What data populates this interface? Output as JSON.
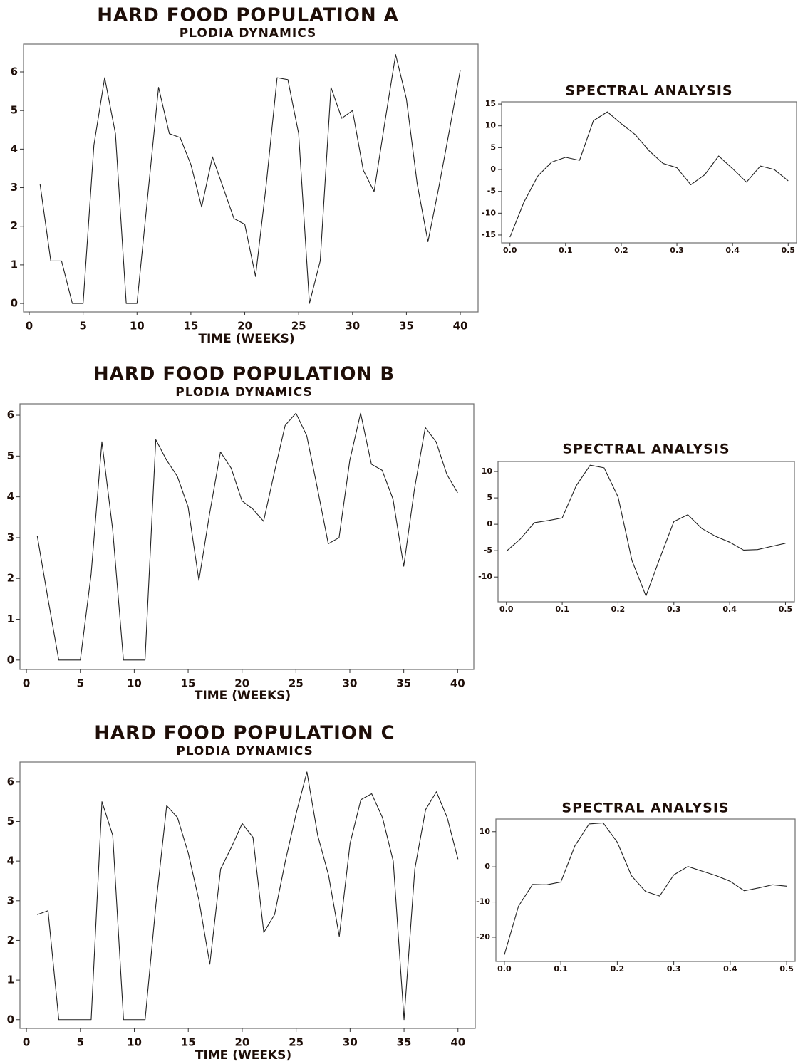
{
  "chart_data": [
    {
      "type": "line",
      "title": "HARD FOOD POPULATION A",
      "subtitle": "PLODIA DYNAMICS",
      "xlabel": "TIME (WEEKS)",
      "color": "#222222",
      "x": [
        1,
        2,
        3,
        4,
        5,
        6,
        7,
        8,
        9,
        10,
        11,
        12,
        13,
        14,
        15,
        16,
        17,
        18,
        19,
        20,
        21,
        22,
        23,
        24,
        25,
        26,
        27,
        28,
        29,
        30,
        31,
        32,
        33,
        34,
        35,
        36,
        37,
        38,
        39,
        40
      ],
      "values": [
        3.1,
        1.1,
        1.1,
        0,
        0,
        4.1,
        5.85,
        4.4,
        0,
        0,
        2.8,
        5.6,
        4.4,
        4.3,
        3.6,
        2.5,
        3.8,
        3.0,
        2.2,
        2.05,
        0.7,
        3.1,
        5.85,
        5.8,
        4.4,
        0,
        1.1,
        5.6,
        4.8,
        5.0,
        3.45,
        2.9,
        4.7,
        6.45,
        5.3,
        3.1,
        1.6,
        3.0,
        4.5,
        6.05
      ],
      "xlim": [
        -0.53,
        41.65
      ],
      "ylim": [
        -0.22,
        6.72
      ],
      "xticks": [
        0,
        5,
        10,
        15,
        20,
        25,
        30,
        35,
        40
      ],
      "yticks": [
        0,
        1,
        2,
        3,
        4,
        5,
        6
      ]
    },
    {
      "type": "line",
      "title": "SPECTRAL ANALYSIS",
      "color": "#222222",
      "x": [
        0,
        0.025,
        0.05,
        0.075,
        0.1,
        0.125,
        0.15,
        0.175,
        0.2,
        0.225,
        0.25,
        0.275,
        0.3,
        0.325,
        0.35,
        0.375,
        0.4,
        0.425,
        0.45,
        0.475,
        0.5
      ],
      "values": [
        -15.5,
        -7.5,
        -1.5,
        1.7,
        2.8,
        2.1,
        11.2,
        13.2,
        10.5,
        8,
        4.3,
        1.4,
        0.4,
        -3.5,
        -1.2,
        3.1,
        0.2,
        -2.9,
        0.8,
        0.0,
        -2.6
      ],
      "xlim": [
        -0.015,
        0.515
      ],
      "ylim": [
        -16.8,
        15.5
      ],
      "xticks": [
        {
          "value": 0,
          "label": "0.0"
        },
        0.1,
        0.2,
        0.3,
        0.4,
        0.5
      ],
      "yticks": [
        -15,
        -10,
        -5,
        0,
        5,
        10,
        15
      ]
    },
    {
      "type": "line",
      "title": "HARD FOOD POPULATION B",
      "subtitle": "PLODIA DYNAMICS",
      "xlabel": "TIME (WEEKS)",
      "color": "#222222",
      "x": [
        1,
        2,
        3,
        4,
        5,
        6,
        7,
        8,
        9,
        10,
        11,
        12,
        13,
        14,
        15,
        16,
        17,
        18,
        19,
        20,
        21,
        22,
        23,
        24,
        25,
        26,
        27,
        28,
        29,
        30,
        31,
        32,
        33,
        34,
        35,
        36,
        37,
        38,
        39,
        40
      ],
      "values": [
        3.05,
        1.5,
        0,
        0,
        0,
        2.1,
        5.35,
        3.2,
        0,
        0,
        0,
        5.4,
        4.9,
        4.5,
        3.75,
        1.95,
        3.6,
        5.1,
        4.7,
        3.9,
        3.7,
        3.4,
        4.6,
        5.75,
        6.05,
        5.5,
        4.2,
        2.85,
        3.0,
        4.9,
        6.05,
        4.8,
        4.65,
        3.95,
        2.3,
        4.2,
        5.7,
        5.35,
        4.55,
        4.1
      ],
      "xlim": [
        -0.6,
        41.5
      ],
      "ylim": [
        -0.23,
        6.28
      ],
      "xticks": [
        0,
        5,
        10,
        15,
        20,
        25,
        30,
        35,
        40
      ],
      "yticks": [
        0,
        1,
        2,
        3,
        4,
        5,
        6
      ]
    },
    {
      "type": "line",
      "title": "SPECTRAL ANALYSIS",
      "color": "#222222",
      "x": [
        0,
        0.025,
        0.05,
        0.075,
        0.1,
        0.125,
        0.15,
        0.175,
        0.2,
        0.225,
        0.25,
        0.275,
        0.3,
        0.325,
        0.35,
        0.375,
        0.4,
        0.425,
        0.45,
        0.475,
        0.5
      ],
      "values": [
        -5.1,
        -2.8,
        0.3,
        0.7,
        1.2,
        7.3,
        11.2,
        10.7,
        5.2,
        -6.9,
        -13.6,
        -6.4,
        0.5,
        1.8,
        -0.8,
        -2.3,
        -3.4,
        -4.9,
        -4.8,
        -4.2,
        -3.6
      ],
      "xlim": [
        -0.015,
        0.516
      ],
      "ylim": [
        -14.7,
        11.9
      ],
      "xticks": [
        {
          "value": 0,
          "label": "0.0"
        },
        0.1,
        0.2,
        0.3,
        0.4,
        0.5
      ],
      "yticks": [
        -10,
        -5,
        0,
        5,
        10
      ]
    },
    {
      "type": "line",
      "title": "HARD FOOD POPULATION C",
      "subtitle": "PLODIA DYNAMICS",
      "xlabel": "TIME (WEEKS)",
      "color": "#222222",
      "x": [
        1,
        2,
        3,
        4,
        5,
        6,
        7,
        8,
        9,
        10,
        11,
        12,
        13,
        14,
        15,
        16,
        17,
        18,
        19,
        20,
        21,
        22,
        23,
        24,
        25,
        26,
        27,
        28,
        29,
        30,
        31,
        32,
        33,
        34,
        35,
        36,
        37,
        38,
        39,
        40
      ],
      "values": [
        2.65,
        2.75,
        0,
        0,
        0,
        0,
        5.5,
        4.65,
        0,
        0,
        0,
        2.9,
        5.4,
        5.1,
        4.2,
        3.0,
        1.4,
        3.8,
        4.35,
        4.95,
        4.6,
        2.2,
        2.65,
        4.0,
        5.2,
        6.25,
        4.65,
        3.65,
        2.1,
        4.45,
        5.55,
        5.7,
        5.1,
        4.0,
        0,
        3.8,
        5.3,
        5.75,
        5.1,
        4.05
      ],
      "xlim": [
        -0.6,
        41.6
      ],
      "ylim": [
        -0.22,
        6.5
      ],
      "xticks": [
        0,
        5,
        10,
        15,
        20,
        25,
        30,
        35,
        40
      ],
      "yticks": [
        0,
        1,
        2,
        3,
        4,
        5,
        6
      ]
    },
    {
      "type": "line",
      "title": "SPECTRAL ANALYSIS",
      "color": "#222222",
      "x": [
        0,
        0.025,
        0.05,
        0.075,
        0.1,
        0.125,
        0.15,
        0.175,
        0.2,
        0.225,
        0.25,
        0.275,
        0.3,
        0.325,
        0.35,
        0.375,
        0.4,
        0.425,
        0.45,
        0.475,
        0.5
      ],
      "values": [
        -25,
        -11.2,
        -5,
        -5.1,
        -4.3,
        6,
        12.2,
        12.5,
        7,
        -2.5,
        -7,
        -8.3,
        -2.3,
        0.1,
        -1.2,
        -2.5,
        -4.1,
        -6.8,
        -6,
        -5.1,
        -5.5
      ],
      "xlim": [
        -0.015,
        0.515
      ],
      "ylim": [
        -26.9,
        13.6
      ],
      "xticks": [
        {
          "value": 0,
          "label": "0.0"
        },
        0.1,
        0.2,
        0.3,
        0.4,
        0.5
      ],
      "yticks": [
        -20,
        -10,
        0,
        10
      ]
    }
  ]
}
